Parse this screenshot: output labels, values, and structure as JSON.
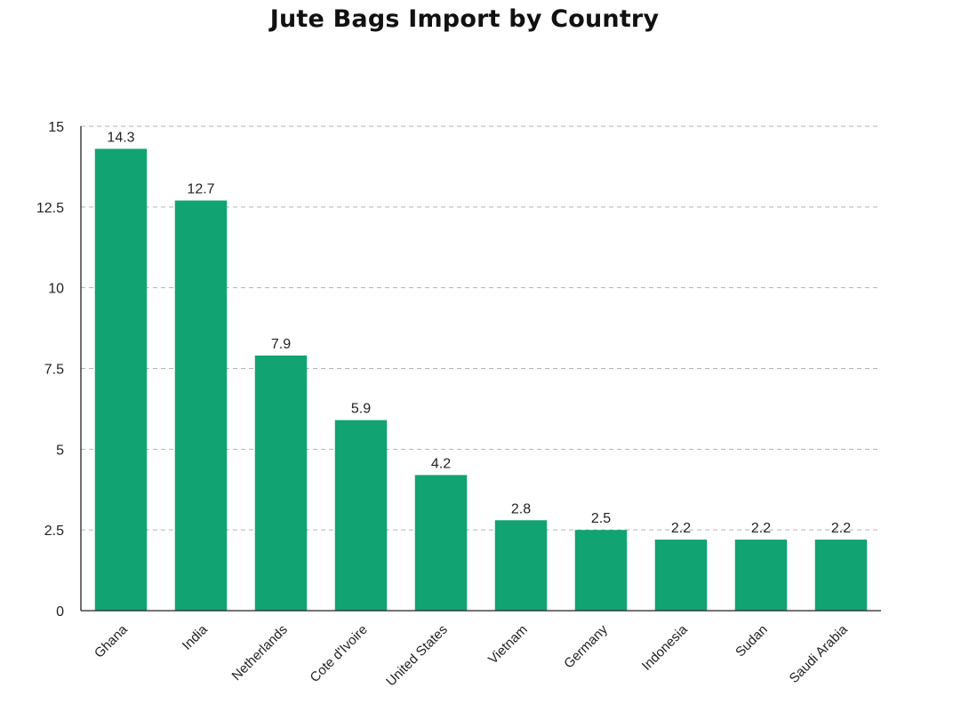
{
  "chart_data": {
    "type": "bar",
    "title": "Jute Bags Import by Country",
    "xlabel": "",
    "ylabel": "",
    "categories": [
      "Ghana",
      "India",
      "Netherlands",
      "Cote d'Ivoire",
      "United States",
      "Vietnam",
      "Germany",
      "Indonesia",
      "Sudan",
      "Saudi Arabia"
    ],
    "values": [
      14.3,
      12.7,
      7.9,
      5.9,
      4.2,
      2.8,
      2.5,
      2.2,
      2.2,
      2.2
    ],
    "data_labels": [
      "14.3",
      "12.7",
      "7.9",
      "5.9",
      "4.2",
      "2.8",
      "2.5",
      "2.2",
      "2.2",
      "2.2"
    ],
    "ylim": [
      0,
      15
    ],
    "yticks": [
      0,
      2.5,
      5,
      7.5,
      10,
      12.5,
      15
    ],
    "ytick_labels": [
      "0",
      "2.5",
      "5",
      "7.5",
      "10",
      "12.5",
      "15"
    ],
    "grid": true,
    "grid_style": "dashed",
    "legend": "none",
    "bar_color": "#12a373",
    "grid_color": "#b3b3b3",
    "axis_color": "#222222"
  }
}
